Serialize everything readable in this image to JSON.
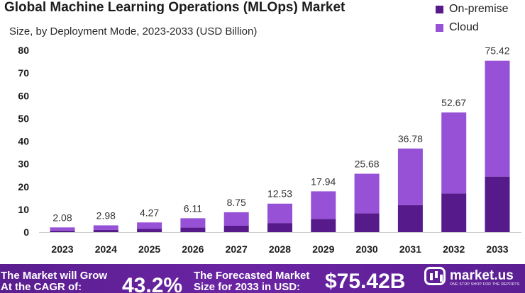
{
  "header": {
    "title": "Global Machine Learning Operations (MLOps) Market",
    "subtitle": "Size, by Deployment Mode, 2023-2033 (USD Billion)"
  },
  "legend": {
    "items": [
      {
        "label": "On-premise",
        "color": "#561a8b"
      },
      {
        "label": "Cloud",
        "color": "#9651d6"
      }
    ]
  },
  "chart_data": {
    "type": "bar",
    "stacked": true,
    "categories": [
      "2023",
      "2024",
      "2025",
      "2026",
      "2027",
      "2028",
      "2029",
      "2030",
      "2031",
      "2032",
      "2033"
    ],
    "series": [
      {
        "name": "On-premise",
        "color": "#561a8b",
        "values": [
          0.7,
          1.0,
          1.4,
          2.0,
          2.8,
          4.0,
          5.8,
          8.3,
          11.9,
          17.0,
          24.4
        ]
      },
      {
        "name": "Cloud",
        "color": "#9651d6",
        "values": [
          1.38,
          1.98,
          2.87,
          4.11,
          5.95,
          8.53,
          12.14,
          17.38,
          24.88,
          35.67,
          51.02
        ]
      }
    ],
    "totals": [
      "2.08",
      "2.98",
      "4.27",
      "6.11",
      "8.75",
      "12.53",
      "17.94",
      "25.68",
      "36.78",
      "52.67",
      "75.42"
    ],
    "ylim": [
      0,
      80
    ],
    "yticks": [
      "0",
      "10",
      "20",
      "30",
      "40",
      "50",
      "60",
      "70",
      "80"
    ],
    "title": "Global Machine Learning Operations (MLOps) Market",
    "xlabel": "",
    "ylabel": "",
    "grid": false,
    "legend_position": "top-right"
  },
  "footer": {
    "cagr_text": "The Market will Grow\nAt the CAGR of:",
    "cagr_value": "43.2%",
    "forecast_text": "The Forecasted Market\nSize for 2033 in USD:",
    "forecast_value": "$75.42B",
    "brand_name": "market.us",
    "brand_tagline": "ONE STOP SHOP FOR THE REPORTS"
  }
}
